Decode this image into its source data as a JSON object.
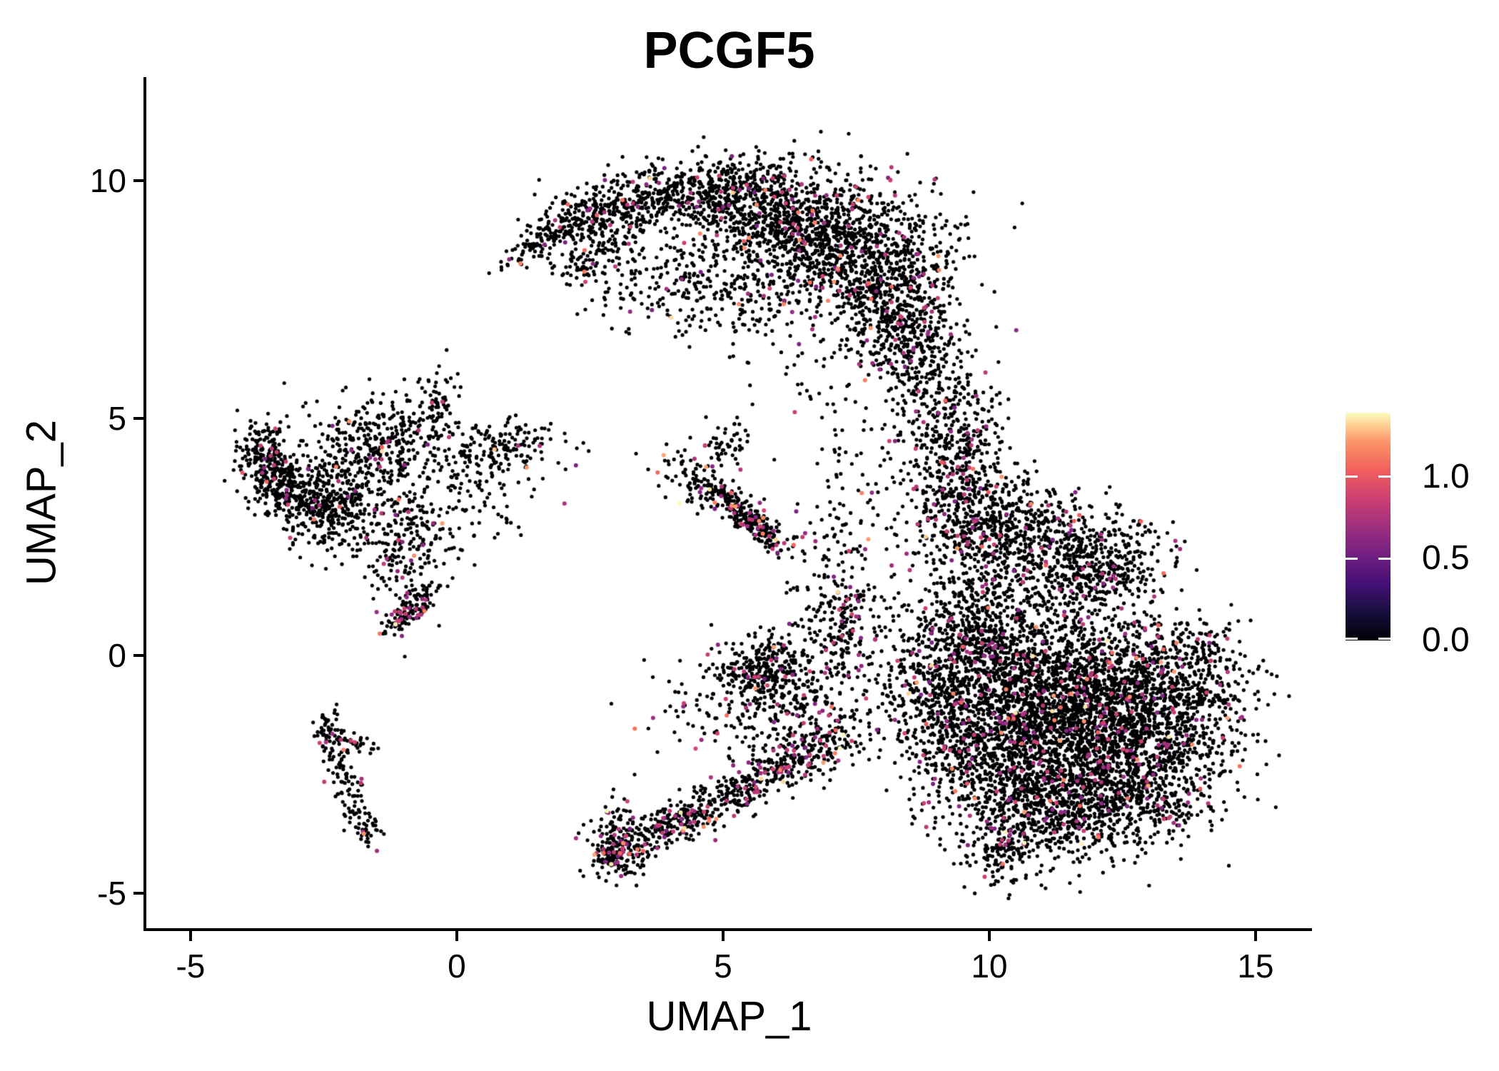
{
  "title": "PCGF5",
  "axes": {
    "x_label": "UMAP_1",
    "y_label": "UMAP_2",
    "x_ticks": [
      -5,
      0,
      5,
      10,
      15
    ],
    "x_tick_labels": [
      "-5",
      "0",
      "5",
      "10",
      "15"
    ],
    "y_ticks": [
      -5,
      0,
      5,
      10
    ],
    "y_tick_labels": [
      "-5",
      "0",
      "5",
      "10"
    ],
    "x_range": [
      -5.83,
      16.06
    ],
    "y_range": [
      -5.74,
      12.18
    ]
  },
  "legend": {
    "tick_values": [
      1.0,
      0.5,
      0.0
    ],
    "tick_labels": [
      "1.0",
      "0.5",
      "0.0"
    ],
    "max_value": 1.39,
    "min_value": 0.0,
    "colormap": "magma"
  },
  "colors": {
    "background": "#ffffff",
    "axis": "#000000",
    "text": "#000000",
    "point_zero": "#000004",
    "magma_stops": [
      [
        0.0,
        "#000004"
      ],
      [
        0.125,
        "#180f3e"
      ],
      [
        0.25,
        "#451077"
      ],
      [
        0.375,
        "#721f81"
      ],
      [
        0.5,
        "#9f2f7f"
      ],
      [
        0.625,
        "#cd4071"
      ],
      [
        0.75,
        "#f1605d"
      ],
      [
        0.875,
        "#fd9668"
      ],
      [
        0.9375,
        "#feca8d"
      ],
      [
        1.0,
        "#fcfdbf"
      ]
    ]
  },
  "chart_data": {
    "type": "scatter",
    "title": "PCGF5",
    "xlabel": "UMAP_1",
    "ylabel": "UMAP_2",
    "xlim": [
      -5.83,
      16.06
    ],
    "ylim": [
      -5.74,
      12.18
    ],
    "point_radius_px": 2.6,
    "n_points_approx": 15300,
    "expression_range": [
      0.0,
      1.39
    ],
    "expression_fractions": {
      "zero_black": 0.95,
      "pink_mid_base": 0.04,
      "orange_high_base": 0.008,
      "yellow_max_base": 0.0012
    },
    "cluster_format": "[center_x, center_y, sd_x, sd_y, rotation_deg, n_points, hot_spot_multiplier]",
    "clusters": [
      [
        1.55,
        8.72,
        0.5,
        0.13,
        36,
        90,
        1
      ],
      [
        2.5,
        9.25,
        0.55,
        0.26,
        15,
        200,
        1
      ],
      [
        2.5,
        8.45,
        0.55,
        0.35,
        20,
        120,
        1
      ],
      [
        3.9,
        9.7,
        0.75,
        0.32,
        5,
        330,
        1
      ],
      [
        5.3,
        9.75,
        0.7,
        0.4,
        0,
        380,
        1
      ],
      [
        6.4,
        9.1,
        0.85,
        0.6,
        0,
        650,
        1
      ],
      [
        7.6,
        8.35,
        0.85,
        0.75,
        0,
        800,
        1.2
      ],
      [
        8.35,
        7.0,
        0.55,
        0.65,
        0,
        420,
        1.2
      ],
      [
        8.9,
        5.9,
        0.4,
        0.55,
        0,
        150,
        1.2
      ],
      [
        3.6,
        8.15,
        0.9,
        0.6,
        0,
        150,
        0.7
      ],
      [
        5.1,
        7.5,
        0.9,
        0.5,
        0,
        200,
        1
      ],
      [
        9.45,
        4.6,
        0.45,
        0.65,
        0,
        200,
        1.3
      ],
      [
        9.55,
        3.2,
        0.5,
        0.75,
        0,
        260,
        1.3
      ],
      [
        8.75,
        3.9,
        0.5,
        0.9,
        0,
        90,
        1
      ],
      [
        7.6,
        3.6,
        0.7,
        0.7,
        0,
        60,
        1
      ],
      [
        6.9,
        5.3,
        0.5,
        0.7,
        0,
        30,
        1
      ],
      [
        10.5,
        2.6,
        0.75,
        0.6,
        0,
        480,
        1.2
      ],
      [
        11.5,
        1.8,
        0.8,
        0.55,
        0,
        420,
        1.2
      ],
      [
        12.55,
        2.1,
        0.5,
        0.45,
        0,
        130,
        1
      ],
      [
        11.2,
        -0.5,
        1.15,
        0.85,
        0,
        1400,
        1.2
      ],
      [
        12.3,
        -1.7,
        1.05,
        0.85,
        0,
        1300,
        1.3
      ],
      [
        10.4,
        -1.9,
        0.9,
        0.85,
        0,
        900,
        1.2
      ],
      [
        13.55,
        -0.8,
        0.65,
        0.75,
        0,
        480,
        1.2
      ],
      [
        14.0,
        0.1,
        0.35,
        0.35,
        0,
        60,
        1.5
      ],
      [
        12.6,
        -3.0,
        0.85,
        0.55,
        0,
        480,
        1.3
      ],
      [
        11.0,
        -3.3,
        0.75,
        0.55,
        0,
        420,
        1.2
      ],
      [
        10.3,
        -4.1,
        0.45,
        0.35,
        20,
        150,
        1.2
      ],
      [
        9.25,
        -0.9,
        0.55,
        0.95,
        0,
        380,
        1.2
      ],
      [
        9.8,
        0.7,
        0.65,
        0.6,
        0,
        330,
        1.2
      ],
      [
        8.4,
        -0.3,
        0.65,
        1.1,
        0,
        150,
        1
      ],
      [
        3.08,
        -3.95,
        0.3,
        0.4,
        20,
        190,
        3.5
      ],
      [
        2.85,
        -4.3,
        0.18,
        0.18,
        0,
        60,
        2
      ],
      [
        4.1,
        -3.55,
        0.45,
        0.2,
        27,
        150,
        3
      ],
      [
        5.0,
        -3.0,
        0.5,
        0.22,
        28,
        150,
        3
      ],
      [
        5.9,
        -2.45,
        0.5,
        0.22,
        28,
        150,
        3
      ],
      [
        6.8,
        -1.95,
        0.45,
        0.26,
        28,
        130,
        2.5
      ],
      [
        6.2,
        -1.3,
        0.9,
        0.55,
        0,
        180,
        1.5
      ],
      [
        4.4,
        -0.9,
        0.7,
        0.7,
        0,
        50,
        1.5
      ],
      [
        5.72,
        -0.35,
        0.42,
        0.42,
        0,
        260,
        2
      ],
      [
        6.7,
        -0.3,
        0.6,
        0.55,
        0,
        120,
        1.2
      ],
      [
        7.25,
        0.6,
        0.3,
        0.45,
        0,
        120,
        2
      ],
      [
        7.2,
        1.8,
        0.45,
        0.7,
        0,
        100,
        1.5
      ],
      [
        4.3,
        3.85,
        0.35,
        0.22,
        0,
        40,
        1
      ],
      [
        5.05,
        4.4,
        0.28,
        0.28,
        0,
        55,
        1.5
      ],
      [
        4.75,
        3.45,
        0.25,
        0.2,
        -30,
        60,
        1.5
      ],
      [
        5.5,
        2.9,
        0.5,
        0.14,
        -45,
        260,
        2.5
      ],
      [
        -3.62,
        4.25,
        0.3,
        0.33,
        0,
        190,
        1
      ],
      [
        -3.3,
        3.5,
        0.35,
        0.28,
        0,
        160,
        1
      ],
      [
        -2.8,
        3.2,
        0.4,
        0.22,
        -15,
        90,
        1
      ],
      [
        -2.35,
        3.3,
        0.45,
        0.55,
        0,
        320,
        1
      ],
      [
        -1.45,
        4.5,
        0.55,
        0.5,
        0,
        320,
        1
      ],
      [
        -0.4,
        5.2,
        0.22,
        0.45,
        0,
        80,
        1
      ],
      [
        0.85,
        4.35,
        0.55,
        0.25,
        10,
        160,
        1
      ],
      [
        0.3,
        3.5,
        0.6,
        0.55,
        0,
        90,
        0.8
      ],
      [
        -0.9,
        2.3,
        0.45,
        0.6,
        0,
        200,
        1.2
      ],
      [
        -0.88,
        0.98,
        0.3,
        0.12,
        50,
        130,
        4
      ],
      [
        -1.7,
        3.1,
        0.8,
        0.7,
        0,
        80,
        0.8
      ],
      [
        -2.45,
        -1.55,
        0.12,
        0.25,
        0,
        40,
        1
      ],
      [
        -2.2,
        -2.3,
        0.14,
        0.35,
        8,
        45,
        1
      ],
      [
        -1.95,
        -3.0,
        0.13,
        0.3,
        10,
        40,
        1
      ],
      [
        -1.68,
        -3.6,
        0.14,
        0.22,
        0,
        40,
        1
      ],
      [
        -1.95,
        -1.8,
        0.3,
        0.1,
        -18,
        40,
        2
      ]
    ]
  }
}
